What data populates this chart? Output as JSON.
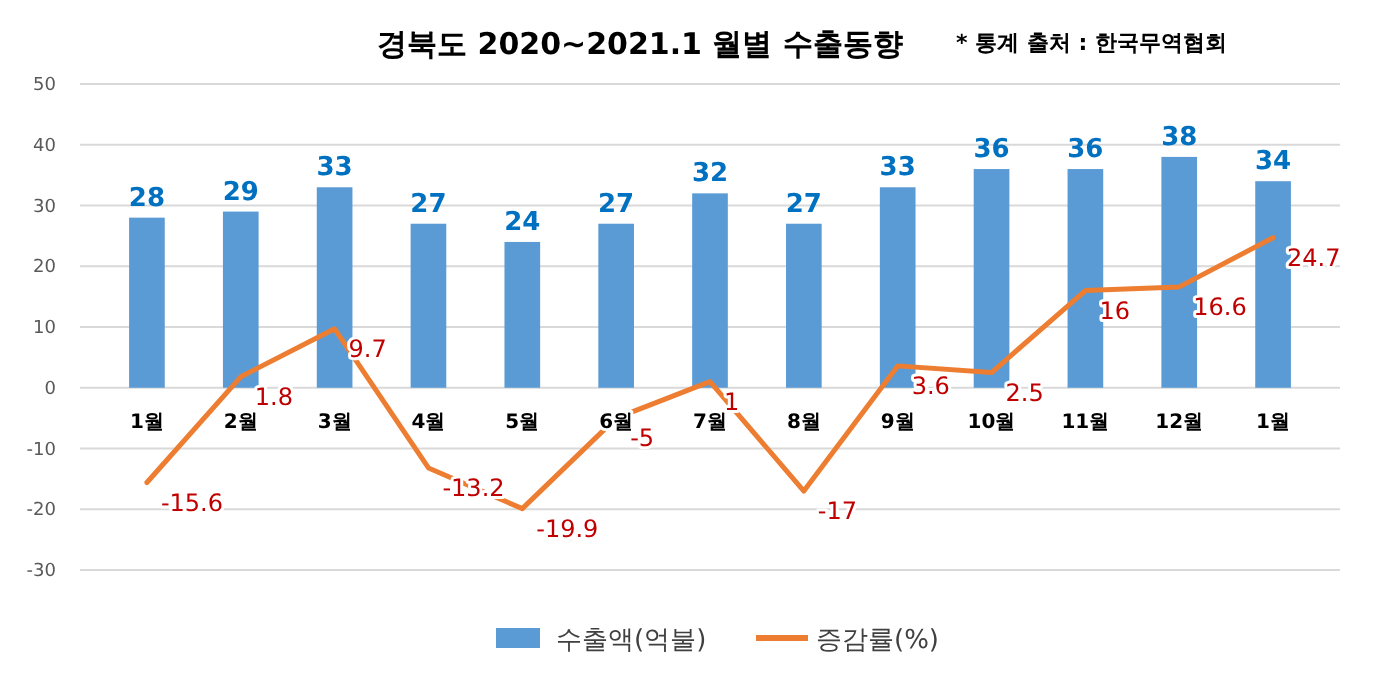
{
  "chart_data": {
    "type": "bar",
    "title": "경북도 2020~2021.1 월별 수출동향",
    "annotations": [
      "* 통계 출처 : 한국무역협회"
    ],
    "categories": [
      "1월",
      "2월",
      "3월",
      "4월",
      "5월",
      "6월",
      "7월",
      "8월",
      "9월",
      "10월",
      "11월",
      "12월",
      "1월"
    ],
    "series": [
      {
        "name": "수출액(억불)",
        "color": "#5b9bd5",
        "values": [
          28,
          29,
          33,
          27,
          24,
          27,
          32,
          27,
          33,
          36,
          36,
          38,
          34
        ]
      },
      {
        "name": "증감률(%)",
        "type": "line",
        "color": "#ed7d31",
        "values": [
          -15.6,
          1.8,
          9.7,
          -13.2,
          -19.9,
          -5,
          1,
          -17,
          3.6,
          2.5,
          16,
          16.6,
          24.7
        ]
      }
    ],
    "ylim": [
      -30,
      50
    ],
    "yticks": [
      -30,
      -20,
      -10,
      0,
      10,
      20,
      30,
      40,
      50
    ],
    "grid": "y",
    "legend": "bottom",
    "data_labels": true,
    "marker": "none"
  }
}
